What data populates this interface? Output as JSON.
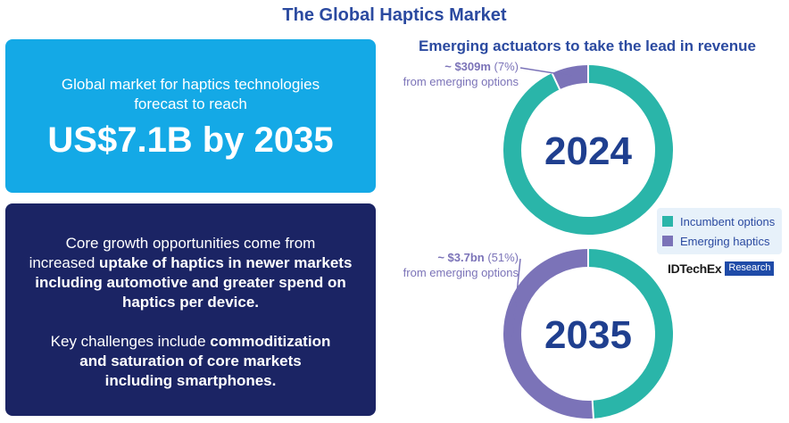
{
  "title": "The Global Haptics Market",
  "headline_box": {
    "lead_line1": "Global market for haptics technologies",
    "lead_line2": "forecast to reach",
    "figure": "US$7.1B by 2035"
  },
  "insight_box": {
    "p1_line1": "Core growth opportunities come from",
    "p1_line2_a": "increased ",
    "p1_line2_b": "uptake of haptics in newer markets",
    "p1_line3": "including automotive and greater spend on",
    "p1_line4": "haptics per device.",
    "p2_line1_a": "Key challenges include ",
    "p2_line1_b": "commoditization",
    "p2_line2": "and saturation of core markets",
    "p2_line3": "including smartphones."
  },
  "chart_data": {
    "type": "pie",
    "title": "Emerging actuators to take the lead in revenue",
    "legend": {
      "position": "right",
      "entries": [
        {
          "label": "Incumbent options",
          "color": "#2ab5a9"
        },
        {
          "label": "Emerging haptics",
          "color": "#7b73b8"
        }
      ]
    },
    "charts": [
      {
        "center_label": "2024",
        "slices": [
          {
            "name": "Incumbent options",
            "percent": 93
          },
          {
            "name": "Emerging haptics",
            "percent": 7
          }
        ],
        "annotation": {
          "value": "~ $309m",
          "pct": "(7%)",
          "line2": "from emerging options"
        }
      },
      {
        "center_label": "2035",
        "slices": [
          {
            "name": "Incumbent options",
            "percent": 49
          },
          {
            "name": "Emerging haptics",
            "percent": 51
          }
        ],
        "annotation": {
          "value": "~ $3.7bn",
          "pct": "(51%)",
          "line2": "from emerging options"
        }
      }
    ]
  },
  "logo": {
    "word": "IDTechEx",
    "tag": "Research"
  }
}
